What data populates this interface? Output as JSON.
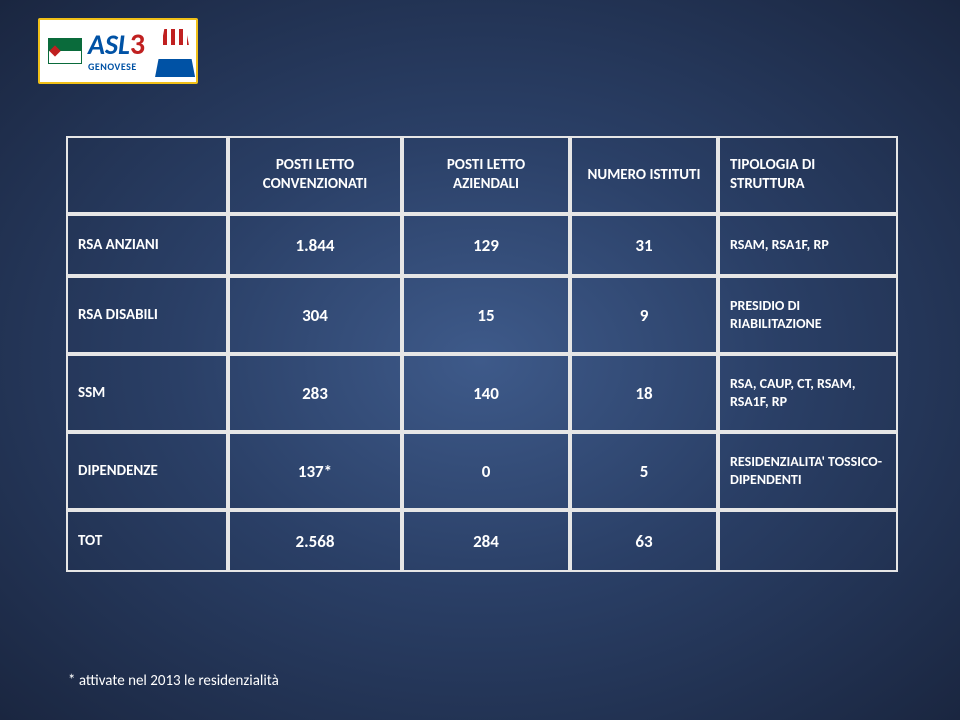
{
  "logo": {
    "brand": "ASL",
    "number": "3",
    "sub": "GENOVESE"
  },
  "table": {
    "headers": {
      "col0": "",
      "col1": "POSTI LETTO CONVENZIONATI",
      "col2": "POSTI LETTO AZIENDALI",
      "col3": "NUMERO ISTITUTI",
      "col4": "TIPOLOGIA DI STRUTTURA"
    },
    "rows": [
      {
        "label": "RSA ANZIANI",
        "v1": "1.844",
        "v2": "129",
        "v3": "31",
        "v4": "RSAM, RSA1F, RP"
      },
      {
        "label": "RSA DISABILI",
        "v1": "304",
        "v2": "15",
        "v3": "9",
        "v4": "PRESIDIO DI RIABILITAZIONE"
      },
      {
        "label": "SSM",
        "v1": "283",
        "v2": "140",
        "v3": "18",
        "v4": "RSA, CAUP, CT, RSAM, RSA1F, RP"
      },
      {
        "label": "DIPENDENZE",
        "v1": "137*",
        "v2": "0",
        "v3": "5",
        "v4": "RESIDENZIALITA' TOSSICO-DIPENDENTI"
      },
      {
        "label": "TOT",
        "v1": "2.568",
        "v2": "284",
        "v3": "63",
        "v4": ""
      }
    ]
  },
  "footnote": "* attivate nel 2013 le residenzialità",
  "colors": {
    "text": "#ffffff",
    "border": "#e6e6e6",
    "bg_center": "#3e5a8a",
    "bg_edge": "#1a2640",
    "logo_border": "#f0c018",
    "logo_blue": "#0052a5",
    "logo_red": "#c02020",
    "logo_green": "#0a6b3b"
  }
}
